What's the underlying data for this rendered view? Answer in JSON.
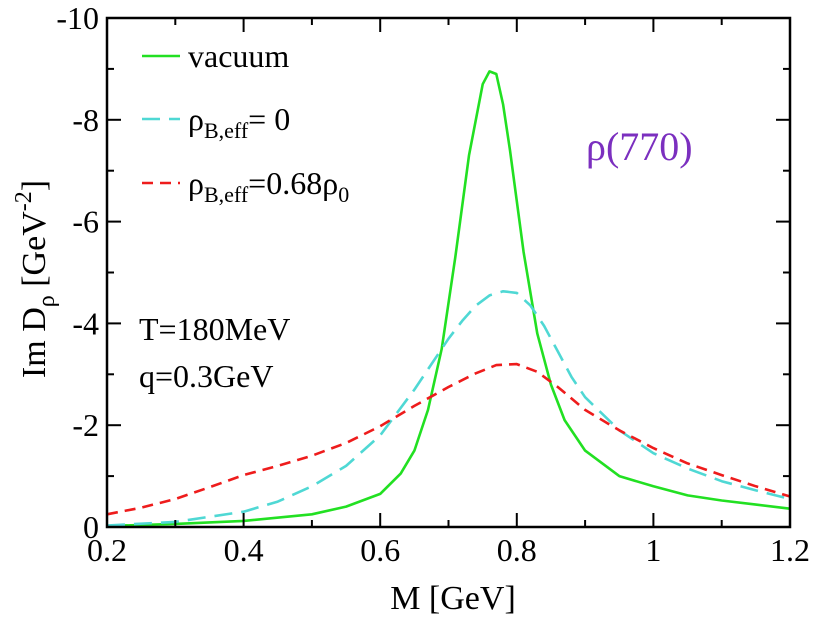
{
  "chart_data": {
    "type": "line",
    "xlabel": "M [GeV]",
    "ylabel": {
      "main": "Im D",
      "sub": "ρ",
      "unit": " [GeV",
      "exp": "-2",
      "close": "]"
    },
    "xlim": [
      0.2,
      1.2
    ],
    "ylim": [
      0,
      -10
    ],
    "y_axis_inverted": true,
    "x_ticks": [
      0.2,
      0.4,
      0.6,
      0.8,
      1.0,
      1.2
    ],
    "x_tick_labels": [
      "0.2",
      "0.4",
      "0.6",
      "0.8",
      "1",
      "1.2"
    ],
    "y_ticks": [
      0,
      -2,
      -4,
      -6,
      -8,
      -10
    ],
    "y_tick_labels": [
      "0",
      "-2",
      "-4",
      "-6",
      "-8",
      "-10"
    ],
    "grid": false,
    "legend_position": "top-left",
    "annotations": {
      "resonance": "ρ(770)",
      "resonance_color": "#7b2fbf",
      "temperature": "T=180MeV",
      "momentum": "q=0.3GeV"
    },
    "series": [
      {
        "name": "vacuum",
        "legend": {
          "main": "vacuum"
        },
        "color": "#22e022",
        "dash": "solid",
        "x": [
          0.2,
          0.3,
          0.4,
          0.5,
          0.55,
          0.6,
          0.63,
          0.65,
          0.67,
          0.69,
          0.71,
          0.73,
          0.75,
          0.76,
          0.77,
          0.78,
          0.79,
          0.8,
          0.81,
          0.83,
          0.85,
          0.87,
          0.9,
          0.95,
          1.0,
          1.05,
          1.1,
          1.15,
          1.2
        ],
        "y": [
          -0.02,
          -0.06,
          -0.12,
          -0.25,
          -0.4,
          -0.65,
          -1.05,
          -1.5,
          -2.3,
          -3.5,
          -5.3,
          -7.3,
          -8.7,
          -8.95,
          -8.9,
          -8.3,
          -7.4,
          -6.4,
          -5.4,
          -3.8,
          -2.8,
          -2.1,
          -1.5,
          -1.0,
          -0.8,
          -0.62,
          -0.52,
          -0.44,
          -0.36
        ]
      },
      {
        "name": "ρB,eff= 0",
        "legend": {
          "main": "ρ",
          "sub": "B,eff",
          "rest": "= 0"
        },
        "color": "#4fd8d4",
        "dash": "long-dash",
        "x": [
          0.2,
          0.3,
          0.4,
          0.45,
          0.5,
          0.55,
          0.6,
          0.65,
          0.7,
          0.72,
          0.74,
          0.76,
          0.78,
          0.8,
          0.82,
          0.84,
          0.86,
          0.88,
          0.9,
          0.95,
          1.0,
          1.05,
          1.1,
          1.15,
          1.2
        ],
        "y": [
          -0.03,
          -0.1,
          -0.3,
          -0.5,
          -0.8,
          -1.2,
          -1.8,
          -2.7,
          -3.7,
          -4.05,
          -4.35,
          -4.55,
          -4.63,
          -4.6,
          -4.35,
          -3.95,
          -3.45,
          -2.95,
          -2.55,
          -1.9,
          -1.45,
          -1.15,
          -0.9,
          -0.72,
          -0.55
        ]
      },
      {
        "name": "ρB,eff=0.68ρ0",
        "legend": {
          "main": "ρ",
          "sub": "B,eff",
          "rest": "=0.68ρ",
          "sub2": "0"
        },
        "color": "#ee1c1c",
        "dash": "short-dash",
        "x": [
          0.2,
          0.25,
          0.3,
          0.35,
          0.4,
          0.45,
          0.5,
          0.55,
          0.6,
          0.65,
          0.7,
          0.74,
          0.77,
          0.8,
          0.83,
          0.86,
          0.9,
          0.95,
          1.0,
          1.05,
          1.1,
          1.15,
          1.2
        ],
        "y": [
          -0.25,
          -0.38,
          -0.55,
          -0.78,
          -1.02,
          -1.2,
          -1.4,
          -1.65,
          -1.98,
          -2.38,
          -2.75,
          -3.02,
          -3.18,
          -3.2,
          -3.05,
          -2.75,
          -2.3,
          -1.9,
          -1.55,
          -1.25,
          -1.02,
          -0.8,
          -0.6
        ]
      }
    ]
  }
}
